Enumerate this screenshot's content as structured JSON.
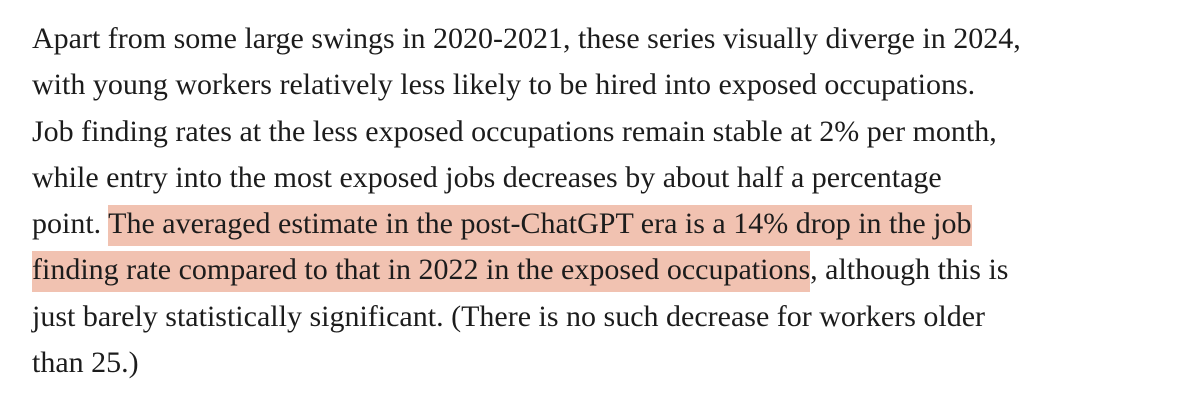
{
  "paragraph": {
    "lines": [
      [
        "Apart from some large swings in 2020-2021, these series visually diverge in 2024,"
      ],
      [
        "with young workers relatively less likely to be hired into exposed occupations."
      ],
      [
        "Job finding rates at the less exposed occupations remain stable at 2% per month,"
      ],
      [
        "while entry into the most exposed jobs decreases by about half a percentage"
      ],
      [
        "point. ",
        "The averaged estimate in the post-ChatGPT era is a 14% drop in the job"
      ],
      [
        "finding rate compared to that in 2022 in the exposed occupations",
        ", although this is"
      ],
      [
        "just barely statistically significant. (There is no such decrease for workers older"
      ],
      [
        "than 25.)"
      ]
    ]
  }
}
